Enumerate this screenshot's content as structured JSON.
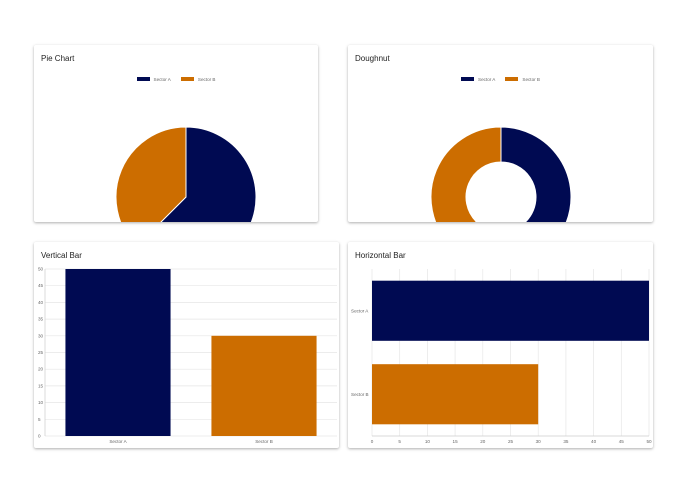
{
  "colors": {
    "sector_a": "#000a52",
    "sector_b": "#cc6d00",
    "grid": "#e6e6e6",
    "axis_text": "#666666"
  },
  "cards": {
    "pie": {
      "title": "Pie Chart"
    },
    "doughnut": {
      "title": "Doughnut"
    },
    "vbar": {
      "title": "Vertical Bar"
    },
    "hbar": {
      "title": "Horizontal Bar"
    }
  },
  "chart_data": [
    {
      "type": "pie",
      "title": "Pie Chart",
      "categories": [
        "Sector A",
        "Sector B"
      ],
      "values": [
        50,
        30
      ],
      "legend": "top"
    },
    {
      "type": "pie",
      "variant": "doughnut",
      "title": "Doughnut",
      "categories": [
        "Sector A",
        "Sector B"
      ],
      "values": [
        50,
        30
      ],
      "legend": "top"
    },
    {
      "type": "bar",
      "orientation": "vertical",
      "title": "Vertical Bar",
      "categories": [
        "Sector A",
        "Sector B"
      ],
      "values": [
        50,
        30
      ],
      "ylim": [
        0,
        50
      ],
      "yticks": [
        "0",
        "5",
        "10",
        "15",
        "20",
        "25",
        "30",
        "35",
        "40",
        "45",
        "50"
      ],
      "grid": true
    },
    {
      "type": "bar",
      "orientation": "horizontal",
      "title": "Horizontal Bar",
      "categories": [
        "Sector A",
        "Sector B"
      ],
      "values": [
        50,
        30
      ],
      "xlim": [
        0,
        50
      ],
      "xticks": [
        "0",
        "5",
        "10",
        "15",
        "20",
        "25",
        "30",
        "35",
        "40",
        "45",
        "50"
      ],
      "grid": true
    }
  ]
}
